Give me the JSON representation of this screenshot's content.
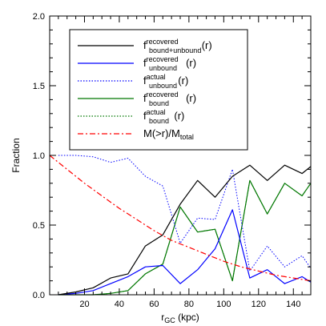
{
  "chart_data": {
    "type": "line",
    "xlabel": {
      "main": "r",
      "sub": "GC",
      "tail": " (kpc)"
    },
    "ylabel": "Fraction",
    "xlim": [
      0,
      150
    ],
    "ylim": [
      0,
      2.0
    ],
    "xticks": [
      20,
      40,
      60,
      80,
      100,
      120,
      140
    ],
    "xtick_labels": [
      "20",
      "40",
      "60",
      "80",
      "100",
      "120",
      "140"
    ],
    "yticks": [
      0.0,
      0.5,
      1.0,
      1.5,
      2.0
    ],
    "ytick_labels": [
      "0.0",
      "0.5",
      "1.0",
      "1.5",
      "2.0"
    ],
    "grid": false,
    "legend_position": "top-left",
    "series": [
      {
        "legend": {
          "base": "f",
          "sup": "recovered",
          "sub": "bound+unbound",
          "tail": "(r)"
        },
        "color": "#000000",
        "dash": "solid",
        "x": [
          5,
          15,
          25,
          35,
          45,
          55,
          65,
          75,
          85,
          95,
          105,
          115,
          125,
          135,
          145,
          150
        ],
        "y": [
          0.0,
          0.02,
          0.05,
          0.12,
          0.15,
          0.35,
          0.43,
          0.65,
          0.82,
          0.7,
          0.85,
          0.93,
          0.82,
          0.93,
          0.87,
          0.92
        ]
      },
      {
        "legend": {
          "base": "f",
          "sup": "recovered",
          "sub": "unbound",
          "tail": "(r)"
        },
        "color": "#0000ff",
        "dash": "solid",
        "x": [
          5,
          15,
          25,
          35,
          45,
          55,
          65,
          75,
          85,
          95,
          105,
          115,
          125,
          135,
          145,
          150
        ],
        "y": [
          0.0,
          0.01,
          0.03,
          0.08,
          0.13,
          0.2,
          0.21,
          0.08,
          0.18,
          0.33,
          0.61,
          0.12,
          0.18,
          0.08,
          0.13,
          0.09
        ]
      },
      {
        "legend": {
          "base": "f",
          "sup": "actual",
          "sub": "unbound",
          "tail": "(r)"
        },
        "color": "#0000ff",
        "dash": "dotted",
        "x": [
          5,
          15,
          25,
          35,
          45,
          55,
          65,
          75,
          85,
          95,
          105,
          115,
          125,
          135,
          145,
          150
        ],
        "y": [
          1.0,
          1.0,
          0.99,
          0.95,
          0.98,
          0.85,
          0.78,
          0.37,
          0.55,
          0.54,
          0.9,
          0.17,
          0.35,
          0.2,
          0.28,
          0.19
        ]
      },
      {
        "legend": {
          "base": "f",
          "sup": "recovered",
          "sub": "bound",
          "tail": "(r)"
        },
        "color": "#007700",
        "dash": "solid",
        "x": [
          5,
          15,
          25,
          35,
          45,
          55,
          65,
          75,
          85,
          95,
          105,
          115,
          125,
          135,
          145,
          150
        ],
        "y": [
          0.0,
          0.0,
          0.0,
          0.01,
          0.03,
          0.15,
          0.22,
          0.63,
          0.45,
          0.47,
          0.1,
          0.82,
          0.58,
          0.8,
          0.71,
          0.8
        ]
      },
      {
        "legend": {
          "base": "f",
          "sup": "actual",
          "sub": "bound",
          "tail": "(r)"
        },
        "color": "#007700",
        "dash": "dotted",
        "x": [
          5,
          15,
          25,
          35,
          45,
          55,
          65,
          75,
          85,
          95,
          105,
          115,
          125,
          135,
          145,
          150
        ],
        "y": [
          0.0,
          0.0,
          0.0,
          0.01,
          0.03,
          0.15,
          0.22,
          0.63,
          0.45,
          0.47,
          0.1,
          0.82,
          0.58,
          0.8,
          0.71,
          0.8
        ]
      },
      {
        "legend": {
          "base": "M(>r)/M",
          "sub": "total"
        },
        "color": "#ff0000",
        "dash": "dashdot",
        "x": [
          0,
          10,
          20,
          30,
          40,
          50,
          60,
          70,
          80,
          90,
          100,
          110,
          120,
          130,
          140,
          150
        ],
        "y": [
          1.0,
          0.9,
          0.8,
          0.71,
          0.62,
          0.54,
          0.46,
          0.39,
          0.34,
          0.29,
          0.24,
          0.2,
          0.17,
          0.14,
          0.12,
          0.1
        ]
      }
    ]
  }
}
